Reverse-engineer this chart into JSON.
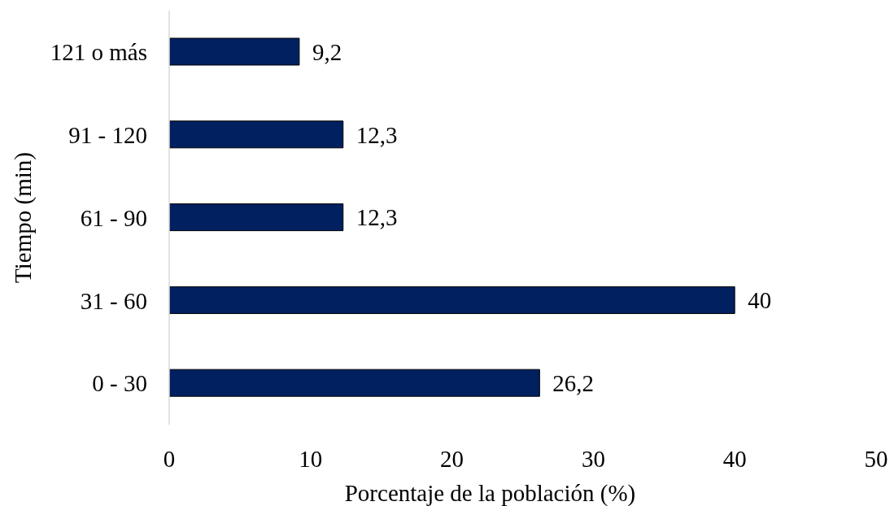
{
  "chart_data": {
    "type": "bar",
    "orientation": "horizontal",
    "xlabel": "Porcentaje de la población (%)",
    "ylabel": "Tiempo (min)",
    "categories": [
      "121 o más",
      "91 - 120",
      "61 - 90",
      "31 - 60",
      "0 - 30"
    ],
    "values": [
      9.2,
      12.3,
      12.3,
      40,
      26.2
    ],
    "value_labels": [
      "9,2",
      "12,3",
      "12,3",
      "40",
      "26,2"
    ],
    "color": "#002060",
    "xlim": [
      0,
      50
    ],
    "xticks": [
      0,
      10,
      20,
      30,
      40,
      50
    ]
  }
}
